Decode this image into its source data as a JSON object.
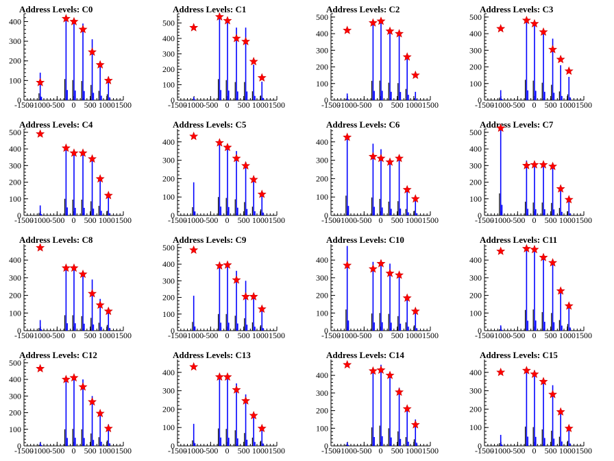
{
  "colors": {
    "histogram": "#0000ff",
    "marker": "#ff0000",
    "axis": "#000000"
  },
  "chart_data": [
    {
      "type": "bar",
      "title": "Address Levels: C0",
      "xlim": [
        -1500,
        1500
      ],
      "xticks": [
        -1500,
        -1000,
        -500,
        0,
        500,
        1000,
        1500
      ],
      "yticks": [
        0,
        100,
        200,
        300,
        400
      ],
      "ylim": [
        0,
        440
      ],
      "x": [
        -1010,
        -230,
        10,
        280,
        560,
        800,
        1050
      ],
      "values": [
        140,
        430,
        410,
        390,
        310,
        190,
        120
      ],
      "markers": [
        90,
        415,
        400,
        360,
        245,
        180,
        100
      ]
    },
    {
      "type": "bar",
      "title": "Address Levels: C1",
      "xlim": [
        -1500,
        1500
      ],
      "xticks": [
        -1500,
        -1000,
        -500,
        0,
        500,
        1000,
        1500
      ],
      "yticks": [
        0,
        100,
        200,
        300,
        400,
        500
      ],
      "ylim": [
        0,
        560
      ],
      "x": [
        -1010,
        -230,
        10,
        280,
        560,
        800,
        1050
      ],
      "values": [
        20,
        545,
        520,
        470,
        470,
        230,
        120
      ],
      "markers": [
        470,
        540,
        515,
        400,
        380,
        250,
        145
      ]
    },
    {
      "type": "bar",
      "title": "Address Levels: C2",
      "xlim": [
        -1500,
        1500
      ],
      "xticks": [
        -1500,
        -1000,
        -500,
        0,
        500,
        1000,
        1500
      ],
      "yticks": [
        0,
        100,
        200,
        300,
        400,
        500
      ],
      "ylim": [
        0,
        520
      ],
      "x": [
        -1010,
        -230,
        10,
        280,
        560,
        800,
        1050
      ],
      "values": [
        40,
        465,
        470,
        420,
        410,
        270,
        50
      ],
      "markers": [
        420,
        465,
        475,
        415,
        400,
        260,
        150
      ]
    },
    {
      "type": "bar",
      "title": "Address Levels: C3",
      "xlim": [
        -1500,
        1500
      ],
      "xticks": [
        -1500,
        -1000,
        -500,
        0,
        500,
        1000,
        1500
      ],
      "yticks": [
        0,
        100,
        200,
        300,
        400,
        500
      ],
      "ylim": [
        0,
        520
      ],
      "x": [
        -1010,
        -230,
        10,
        280,
        560,
        800,
        1050
      ],
      "values": [
        60,
        490,
        470,
        420,
        370,
        210,
        140
      ],
      "markers": [
        430,
        480,
        460,
        410,
        305,
        245,
        175
      ]
    },
    {
      "type": "bar",
      "title": "Address Levels: C4",
      "xlim": [
        -1500,
        1500
      ],
      "xticks": [
        -1500,
        -1000,
        -500,
        0,
        500,
        1000,
        1500
      ],
      "yticks": [
        0,
        100,
        200,
        300,
        400,
        500
      ],
      "ylim": [
        0,
        520
      ],
      "x": [
        -1010,
        -230,
        10,
        280,
        560,
        800,
        1050
      ],
      "values": [
        60,
        400,
        380,
        380,
        340,
        230,
        110
      ],
      "markers": [
        490,
        405,
        375,
        375,
        340,
        220,
        120
      ]
    },
    {
      "type": "bar",
      "title": "Address Levels: C5",
      "xlim": [
        -1500,
        1500
      ],
      "xticks": [
        -1500,
        -1000,
        -500,
        0,
        500,
        1000,
        1500
      ],
      "yticks": [
        0,
        100,
        200,
        300,
        400
      ],
      "ylim": [
        0,
        470
      ],
      "x": [
        -1010,
        -230,
        10,
        280,
        560,
        800,
        1050
      ],
      "values": [
        180,
        400,
        380,
        350,
        290,
        190,
        130
      ],
      "markers": [
        430,
        395,
        370,
        310,
        270,
        195,
        115
      ]
    },
    {
      "type": "bar",
      "title": "Address Levels: C6",
      "xlim": [
        -1500,
        1500
      ],
      "xticks": [
        -1500,
        -1000,
        -500,
        0,
        500,
        1000,
        1500
      ],
      "yticks": [
        0,
        100,
        200,
        300,
        400
      ],
      "ylim": [
        0,
        470
      ],
      "x": [
        -1010,
        -230,
        10,
        280,
        560,
        800,
        1050
      ],
      "values": [
        430,
        390,
        360,
        300,
        310,
        140,
        100
      ],
      "markers": [
        425,
        320,
        310,
        290,
        310,
        140,
        90
      ]
    },
    {
      "type": "bar",
      "title": "Address Levels: C7",
      "xlim": [
        -1500,
        1500
      ],
      "xticks": [
        -1500,
        -1000,
        -500,
        0,
        500,
        1000,
        1500
      ],
      "yticks": [
        0,
        100,
        200,
        300,
        400,
        500
      ],
      "ylim": [
        0,
        520
      ],
      "x": [
        -1010,
        -230,
        10,
        280,
        560,
        800,
        1050
      ],
      "values": [
        530,
        330,
        310,
        310,
        300,
        180,
        100
      ],
      "markers": [
        525,
        300,
        305,
        305,
        295,
        160,
        95
      ]
    },
    {
      "type": "bar",
      "title": "Address Levels: C8",
      "xlim": [
        -1500,
        1500
      ],
      "xticks": [
        -1500,
        -1000,
        -500,
        0,
        500,
        1000,
        1500
      ],
      "yticks": [
        0,
        100,
        200,
        300,
        400
      ],
      "ylim": [
        0,
        490
      ],
      "x": [
        -1010,
        -230,
        10,
        280,
        560,
        800,
        1050
      ],
      "values": [
        60,
        350,
        350,
        330,
        290,
        180,
        130
      ],
      "markers": [
        470,
        355,
        355,
        320,
        210,
        145,
        110
      ]
    },
    {
      "type": "bar",
      "title": "Address Levels: C9",
      "xlim": [
        -1500,
        1500
      ],
      "xticks": [
        -1500,
        -1000,
        -500,
        0,
        500,
        1000,
        1500
      ],
      "yticks": [
        0,
        100,
        200,
        300,
        400,
        500
      ],
      "ylim": [
        0,
        520
      ],
      "x": [
        -1010,
        -230,
        10,
        280,
        560,
        800,
        1050
      ],
      "values": [
        210,
        400,
        400,
        360,
        300,
        200,
        130
      ],
      "markers": [
        485,
        390,
        395,
        305,
        205,
        205,
        130
      ]
    },
    {
      "type": "bar",
      "title": "Address Levels: C10",
      "xlim": [
        -1500,
        1500
      ],
      "xticks": [
        -1500,
        -1000,
        -500,
        0,
        500,
        1000,
        1500
      ],
      "yticks": [
        0,
        100,
        200,
        300,
        400
      ],
      "ylim": [
        0,
        490
      ],
      "x": [
        -1010,
        -230,
        10,
        280,
        560,
        800,
        1050
      ],
      "values": [
        480,
        390,
        400,
        380,
        330,
        190,
        120
      ],
      "markers": [
        370,
        350,
        380,
        325,
        315,
        185,
        110
      ]
    },
    {
      "type": "bar",
      "title": "Address Levels: C11",
      "xlim": [
        -1500,
        1500
      ],
      "xticks": [
        -1500,
        -1000,
        -500,
        0,
        500,
        1000,
        1500
      ],
      "yticks": [
        0,
        100,
        200,
        300,
        400
      ],
      "ylim": [
        0,
        490
      ],
      "x": [
        -1010,
        -230,
        10,
        280,
        560,
        800,
        1050
      ],
      "values": [
        30,
        470,
        480,
        420,
        400,
        240,
        150
      ],
      "markers": [
        450,
        465,
        460,
        415,
        385,
        225,
        140
      ]
    },
    {
      "type": "bar",
      "title": "Address Levels: C12",
      "xlim": [
        -1500,
        1500
      ],
      "xticks": [
        -1500,
        -1000,
        -500,
        0,
        500,
        1000,
        1500
      ],
      "yticks": [
        0,
        100,
        200,
        300,
        400,
        500
      ],
      "ylim": [
        0,
        520
      ],
      "x": [
        -1010,
        -230,
        10,
        280,
        560,
        800,
        1050
      ],
      "values": [
        20,
        400,
        410,
        400,
        300,
        210,
        130
      ],
      "markers": [
        465,
        400,
        410,
        355,
        265,
        195,
        105
      ]
    },
    {
      "type": "bar",
      "title": "Address Levels: C13",
      "xlim": [
        -1500,
        1500
      ],
      "xticks": [
        -1500,
        -1000,
        -500,
        0,
        500,
        1000,
        1500
      ],
      "yticks": [
        0,
        100,
        200,
        300,
        400
      ],
      "ylim": [
        0,
        470
      ],
      "x": [
        -1010,
        -230,
        10,
        280,
        560,
        800,
        1050
      ],
      "values": [
        120,
        380,
        370,
        340,
        280,
        180,
        110
      ],
      "markers": [
        430,
        375,
        375,
        305,
        245,
        165,
        95
      ]
    },
    {
      "type": "bar",
      "title": "Address Levels: C14",
      "xlim": [
        -1500,
        1500
      ],
      "xticks": [
        -1500,
        -1000,
        -500,
        0,
        500,
        1000,
        1500
      ],
      "yticks": [
        0,
        100,
        200,
        300,
        400
      ],
      "ylim": [
        0,
        490
      ],
      "x": [
        -1010,
        -230,
        10,
        280,
        560,
        800,
        1050
      ],
      "values": [
        20,
        420,
        460,
        400,
        330,
        200,
        150
      ],
      "markers": [
        460,
        425,
        430,
        400,
        305,
        210,
        120
      ]
    },
    {
      "type": "bar",
      "title": "Address Levels: C15",
      "xlim": [
        -1500,
        1500
      ],
      "xticks": [
        -1500,
        -1000,
        -500,
        0,
        500,
        1000,
        1500
      ],
      "yticks": [
        0,
        100,
        200,
        300,
        400
      ],
      "ylim": [
        0,
        470
      ],
      "x": [
        -1010,
        -230,
        10,
        280,
        560,
        800,
        1050
      ],
      "values": [
        60,
        420,
        410,
        360,
        330,
        200,
        110
      ],
      "markers": [
        400,
        410,
        390,
        350,
        280,
        185,
        95
      ]
    }
  ]
}
